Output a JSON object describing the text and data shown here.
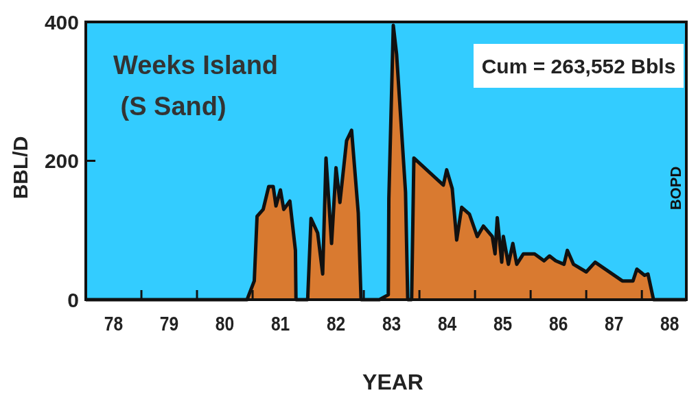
{
  "chart_data": {
    "type": "area",
    "title": "Weeks Island",
    "subtitle": " (S Sand)",
    "xlabel": "YEAR",
    "ylabel": "BBL/D",
    "y2label": "BOPD",
    "annotations": [
      "Cum = 263,552 Bbls"
    ],
    "xlim": [
      78,
      88.8
    ],
    "ylim": [
      0,
      400
    ],
    "xticks": [
      {
        "value": 78.5,
        "label": "78"
      },
      {
        "value": 79.5,
        "label": "79"
      },
      {
        "value": 80.5,
        "label": "80"
      },
      {
        "value": 81.5,
        "label": "81"
      },
      {
        "value": 82.5,
        "label": "82"
      },
      {
        "value": 83.5,
        "label": "83"
      },
      {
        "value": 84.5,
        "label": "84"
      },
      {
        "value": 85.5,
        "label": "85"
      },
      {
        "value": 86.5,
        "label": "86"
      },
      {
        "value": 87.5,
        "label": "87"
      },
      {
        "value": 88.5,
        "label": "88"
      },
      {
        "value": 79,
        "label": null
      },
      {
        "value": 80,
        "label": null
      },
      {
        "value": 81,
        "label": null
      },
      {
        "value": 82,
        "label": null
      },
      {
        "value": 83,
        "label": null
      },
      {
        "value": 84,
        "label": null
      },
      {
        "value": 85,
        "label": null
      },
      {
        "value": 86,
        "label": null
      },
      {
        "value": 87,
        "label": null
      },
      {
        "value": 88,
        "label": null
      }
    ],
    "yticks": [
      0,
      200,
      400
    ],
    "grid": false,
    "series": [
      {
        "color": "#d97a30",
        "x": [
          78,
          80.9,
          81.03,
          81.08,
          81.19,
          81.29,
          81.37,
          81.42,
          81.5,
          81.56,
          81.67,
          81.77,
          81.78,
          81.99,
          82.05,
          82.17,
          82.26,
          82.32,
          82.42,
          82.5,
          82.57,
          82.69,
          82.78,
          82.9,
          82.95,
          83.28,
          83.44,
          83.45,
          83.53,
          83.59,
          83.75,
          83.79,
          83.86,
          83.9,
          84.43,
          84.49,
          84.59,
          84.67,
          84.76,
          84.9,
          85.04,
          85.15,
          85.31,
          85.36,
          85.4,
          85.48,
          85.51,
          85.6,
          85.68,
          85.75,
          85.87,
          86.07,
          86.24,
          86.34,
          86.45,
          86.6,
          86.66,
          86.77,
          87.0,
          87.16,
          87.65,
          87.84,
          87.91,
          88.05,
          88.11,
          88.21,
          88.8
        ],
        "values": [
          0,
          0,
          27,
          120,
          130,
          163,
          163,
          135,
          158,
          130,
          142,
          71,
          0,
          0,
          117,
          96,
          37,
          204,
          81,
          190,
          140,
          229,
          244,
          125,
          0,
          0,
          7,
          145,
          395,
          353,
          155,
          0,
          0,
          204,
          165,
          187,
          160,
          86,
          133,
          123,
          91,
          106,
          91,
          66,
          118,
          54,
          91,
          51,
          81,
          51,
          66,
          66,
          56,
          63,
          56,
          51,
          71,
          51,
          40,
          54,
          27,
          27,
          44,
          35,
          37,
          0,
          0
        ]
      }
    ]
  }
}
